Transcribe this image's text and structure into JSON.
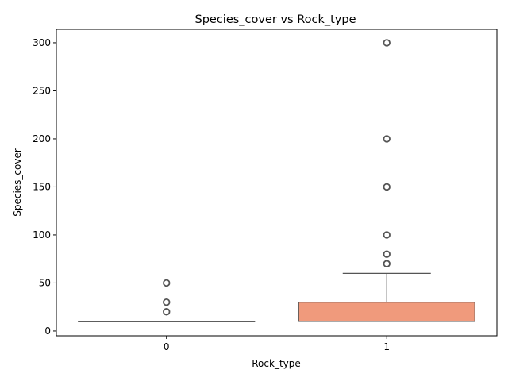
{
  "chart_data": {
    "type": "box",
    "title": "Species_cover vs Rock_type",
    "xlabel": "Rock_type",
    "ylabel": "Species_cover",
    "categories": [
      "0",
      "1"
    ],
    "ylim": [
      -5,
      314
    ],
    "yticks": [
      0,
      50,
      100,
      150,
      200,
      250,
      300
    ],
    "boxes": [
      {
        "category": "0",
        "whisker_low": 10,
        "q1": 10,
        "median": 10,
        "q3": 10,
        "whisker_high": 10,
        "outliers": [
          20,
          30,
          50
        ],
        "color": "#66c2a5"
      },
      {
        "category": "1",
        "whisker_low": 10,
        "q1": 10,
        "median": 10,
        "q3": 30,
        "whisker_high": 60,
        "outliers": [
          70,
          80,
          100,
          150,
          200,
          300
        ],
        "color": "#f09a7c"
      }
    ],
    "line_color": "#555555",
    "grid": false,
    "legend": "none"
  }
}
